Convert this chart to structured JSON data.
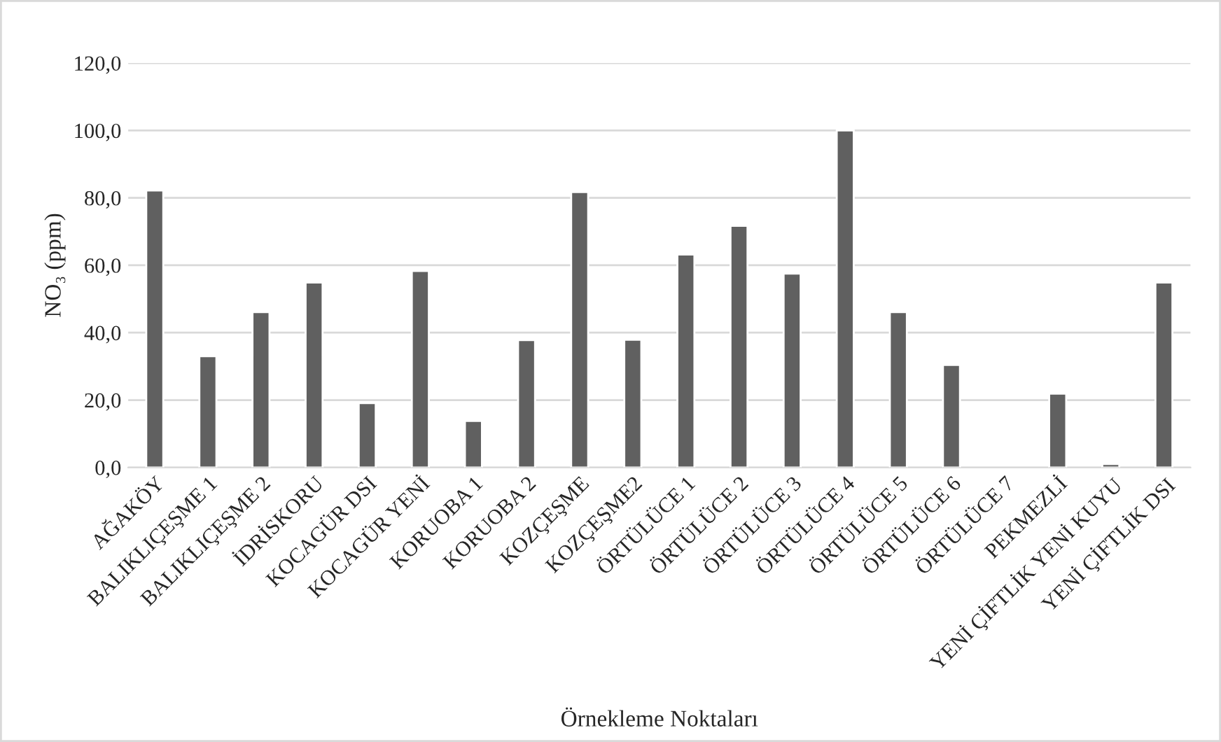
{
  "chart_data": {
    "type": "bar",
    "categories": [
      "AĞAKÖY",
      "BALIKLIÇEŞME 1",
      "BALIKLIÇEŞME 2",
      "İDRİSKORU",
      "KOCAGÜR DSI",
      "KOCAGÜR YENİ",
      "KORUOBA 1",
      "KORUOBA 2",
      "KOZÇEŞME",
      "KOZÇEŞME2",
      "ÖRTÜLÜCE 1",
      "ÖRTÜLÜCE 2",
      "ÖRTÜLÜCE 3",
      "ÖRTÜLÜCE 4",
      "ÖRTÜLÜCE 5",
      "ÖRTÜLÜCE 6",
      "ÖRTÜLÜCE 7",
      "PEKMEZLİ",
      "YENİ ÇİFTLİK YENİ KUYU",
      "YENİ ÇİFTLİK DSI"
    ],
    "values": [
      82.2,
      33.0,
      46.1,
      54.9,
      19.1,
      58.3,
      13.8,
      37.8,
      81.7,
      37.9,
      63.2,
      71.7,
      57.5,
      100.0,
      46.1,
      30.4,
      null,
      21.9,
      1.0,
      54.9
    ],
    "color": "#606060",
    "xlabel": "Örnekleme Noktaları",
    "ylabel": "NO₃ (ppm)",
    "ylim": [
      0,
      120
    ],
    "yticks": [
      {
        "value": 0,
        "label": "0,0"
      },
      {
        "value": 20,
        "label": "20,0"
      },
      {
        "value": 40,
        "label": "40,0"
      },
      {
        "value": 60,
        "label": "60,0"
      },
      {
        "value": 80,
        "label": "80,0"
      },
      {
        "value": 100,
        "label": "100,0"
      },
      {
        "value": 120,
        "label": "120,0"
      }
    ],
    "grid": "y"
  }
}
